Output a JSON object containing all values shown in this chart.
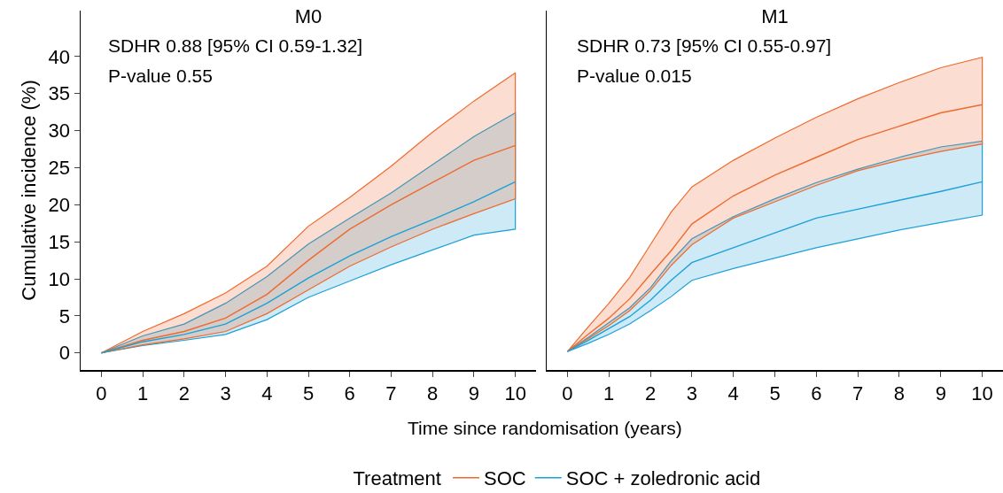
{
  "chart_data": [
    {
      "type": "line",
      "title": "M0",
      "annotations": [
        "SDHR 0.88 [95% CI 0.59-1.32]",
        "P-value 0.55"
      ],
      "xlabel": "Time since randomisation (years)",
      "ylabel": "Cumulative incidence (%)",
      "legend": "bottom",
      "legend_title": "Treatment",
      "x": [
        0,
        1,
        2,
        3,
        4,
        5,
        6,
        7,
        8,
        9,
        10
      ],
      "xlim": [
        -0.5,
        10.5
      ],
      "xticks": [
        0,
        1,
        2,
        3,
        4,
        5,
        6,
        7,
        8,
        9,
        10
      ],
      "ylim": [
        -2.3,
        46.2
      ],
      "yticks": [
        0,
        5,
        10,
        15,
        20,
        25,
        30,
        35,
        40
      ],
      "series": [
        {
          "name": "SOC",
          "color": "#ee6a2e",
          "values": [
            0,
            1.7,
            2.9,
            4.7,
            7.9,
            12.5,
            16.7,
            20.0,
            23.0,
            26.0,
            28.0
          ],
          "lower": [
            0,
            1.1,
            1.9,
            2.9,
            5.3,
            8.5,
            11.7,
            14.3,
            16.7,
            18.8,
            20.8
          ],
          "upper": [
            0,
            2.9,
            5.3,
            8.1,
            11.7,
            17.1,
            21.0,
            25.2,
            29.8,
            34.0,
            37.8
          ]
        },
        {
          "name": "SOC + zoledronic acid",
          "color": "#1ba1d8",
          "values": [
            0,
            1.5,
            2.5,
            3.9,
            6.7,
            10.1,
            13.1,
            15.7,
            18.0,
            20.4,
            23.1
          ],
          "lower": [
            0,
            1.0,
            1.7,
            2.5,
            4.5,
            7.5,
            9.7,
            11.9,
            13.9,
            15.9,
            16.7
          ],
          "upper": [
            0,
            2.3,
            3.9,
            6.7,
            10.3,
            14.7,
            18.2,
            21.6,
            25.4,
            29.2,
            32.4
          ]
        }
      ]
    },
    {
      "type": "line",
      "title": "M1",
      "annotations": [
        "SDHR 0.73 [95% CI 0.55-0.97]",
        "P-value 0.015"
      ],
      "tick_labels": "x",
      "x": [
        0,
        0.5,
        1,
        1.5,
        2,
        2.5,
        3,
        4,
        5,
        6,
        7,
        8,
        9,
        10
      ],
      "xlim": [
        -0.5,
        10.5
      ],
      "xticks": [
        0,
        1,
        2,
        3,
        4,
        5,
        6,
        7,
        8,
        9,
        10
      ],
      "ylim": [
        -2.3,
        46.2
      ],
      "yticks": [
        0,
        5,
        10,
        15,
        20,
        25,
        30,
        35,
        40
      ],
      "series": [
        {
          "color": "#ee6a2e",
          "values": [
            0.2,
            2.5,
            4.7,
            7.3,
            10.6,
            13.8,
            17.4,
            21.2,
            24.0,
            26.4,
            28.8,
            30.6,
            32.4,
            33.5
          ],
          "lower": [
            0.2,
            1.9,
            3.7,
            5.7,
            8.4,
            11.8,
            14.6,
            18.2,
            20.4,
            22.6,
            24.6,
            26.0,
            27.2,
            28.2
          ],
          "upper": [
            0.2,
            3.5,
            6.7,
            10.2,
            14.6,
            19.0,
            22.4,
            26.0,
            29.0,
            31.8,
            34.3,
            36.5,
            38.5,
            39.9
          ]
        },
        {
          "color": "#1ba1d8",
          "values": [
            0.2,
            1.7,
            3.3,
            4.9,
            7.1,
            9.8,
            12.2,
            14.2,
            16.2,
            18.2,
            19.4,
            20.6,
            21.8,
            23.1
          ],
          "lower": [
            0.2,
            1.3,
            2.5,
            3.9,
            5.7,
            7.6,
            9.8,
            11.4,
            12.8,
            14.2,
            15.4,
            16.6,
            17.6,
            18.6
          ],
          "upper": [
            0.2,
            2.1,
            4.1,
            6.1,
            8.8,
            12.4,
            15.4,
            18.4,
            20.8,
            23.0,
            24.8,
            26.4,
            27.8,
            28.6
          ]
        }
      ]
    }
  ]
}
